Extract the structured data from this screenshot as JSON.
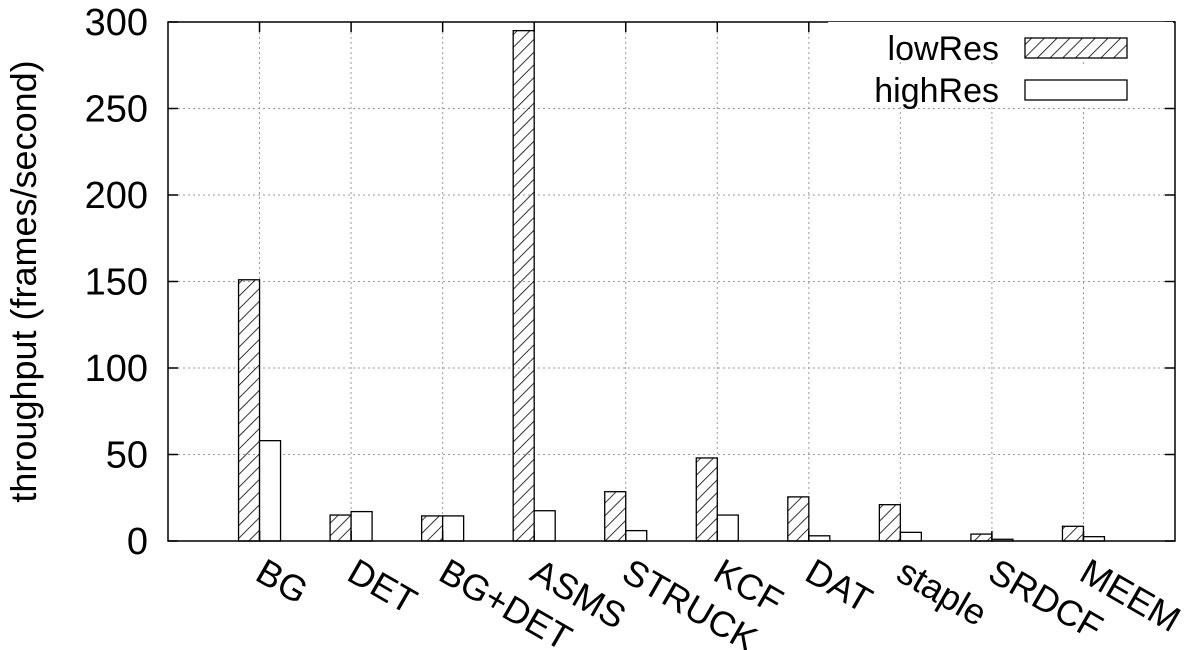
{
  "chart_data": {
    "type": "bar",
    "ylabel": "throughput (frames/second)",
    "xlabel": "",
    "ylim": [
      0,
      300
    ],
    "yticks": [
      0,
      50,
      100,
      150,
      200,
      250,
      300
    ],
    "grid": true,
    "legend_position": "top-right",
    "categories": [
      "BG",
      "DET",
      "BG+DET",
      "ASMS",
      "STRUCK",
      "KCF",
      "DAT",
      "staple",
      "SRDCF",
      "MEEM"
    ],
    "series": [
      {
        "name": "lowRes",
        "pattern": "hatched",
        "values": [
          151,
          15,
          14.5,
          295,
          28.5,
          48,
          25.5,
          21,
          4,
          8.5
        ]
      },
      {
        "name": "highRes",
        "pattern": "empty",
        "values": [
          58,
          17,
          14.5,
          17.5,
          6,
          15,
          3,
          5,
          1,
          2.5
        ]
      }
    ]
  }
}
